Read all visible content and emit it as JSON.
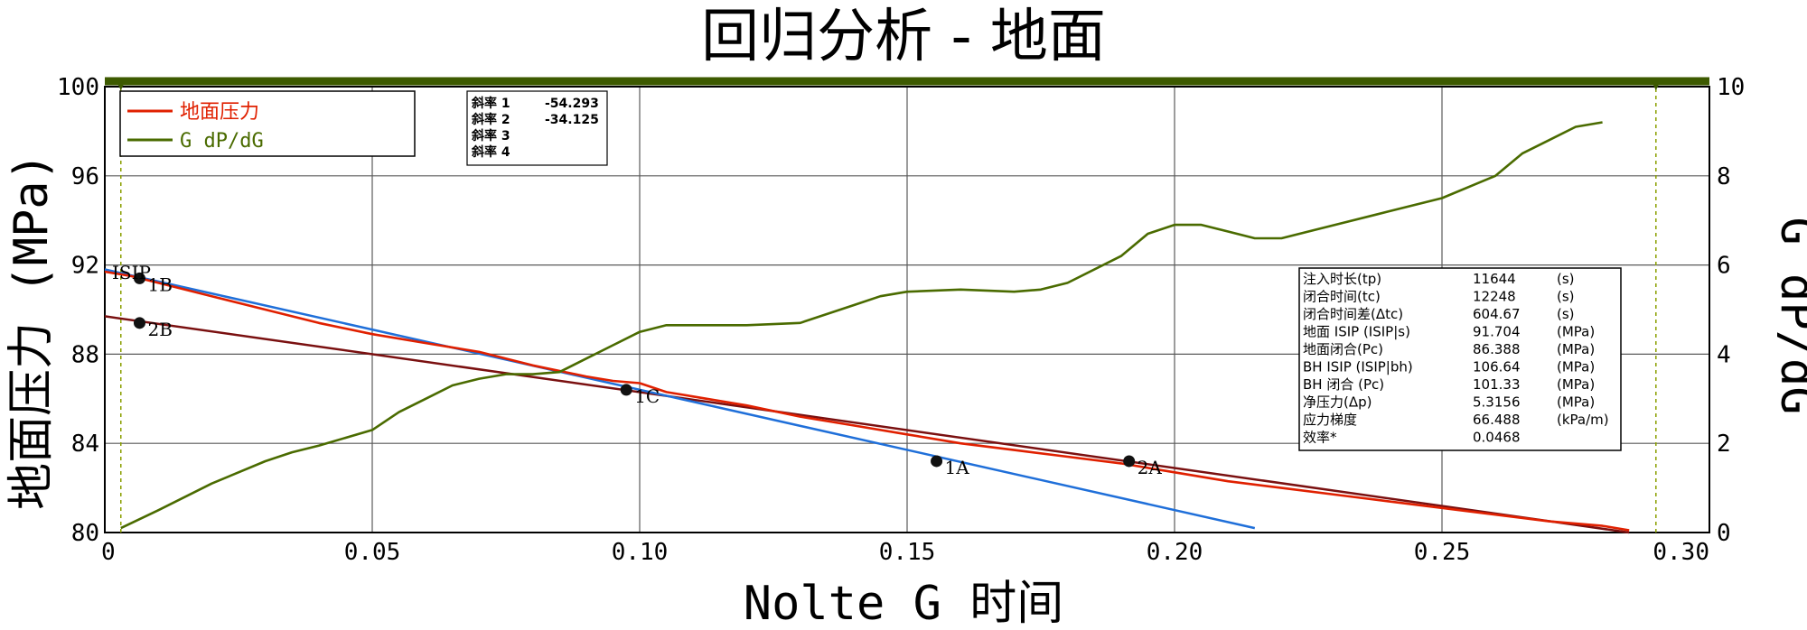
{
  "chart_data": {
    "type": "line",
    "title": "回归分析 - 地面",
    "xlabel": "Nolte G 时间",
    "ylabel": "地面压力 (MPa)",
    "y2label": "G dP/dG",
    "xlim": [
      0,
      0.3
    ],
    "ylim": [
      80,
      100
    ],
    "y2lim": [
      0,
      10
    ],
    "x_ticks": [
      "0",
      "0.05",
      "0.10",
      "0.15",
      "0.20",
      "0.25",
      "0.30"
    ],
    "y_ticks": [
      "80",
      "84",
      "88",
      "92",
      "96",
      "100"
    ],
    "y2_ticks": [
      "0",
      "2",
      "4",
      "6",
      "8",
      "10"
    ],
    "grid": true,
    "legend": {
      "position": "top-left",
      "entries": [
        {
          "label": "地面压力",
          "color": "#e02000"
        },
        {
          "label": "G dP/dG",
          "color": "#4a6b00"
        }
      ]
    },
    "series": [
      {
        "name": "地面压力",
        "axis": "left",
        "color": "#e02000",
        "x": [
          0,
          0.005,
          0.01,
          0.02,
          0.03,
          0.04,
          0.05,
          0.06,
          0.07,
          0.08,
          0.09,
          0.095,
          0.1,
          0.105,
          0.11,
          0.12,
          0.13,
          0.14,
          0.15,
          0.16,
          0.17,
          0.18,
          0.19,
          0.2,
          0.21,
          0.22,
          0.23,
          0.24,
          0.25,
          0.26,
          0.27,
          0.28,
          0.285
        ],
        "y": [
          91.7,
          91.5,
          91.2,
          90.6,
          90.0,
          89.4,
          88.9,
          88.5,
          88.1,
          87.5,
          87.0,
          86.8,
          86.7,
          86.3,
          86.1,
          85.7,
          85.2,
          84.8,
          84.4,
          84.0,
          83.7,
          83.4,
          83.1,
          82.7,
          82.3,
          82.0,
          81.7,
          81.4,
          81.1,
          80.8,
          80.5,
          80.3,
          80.1
        ]
      },
      {
        "name": "G dP/dG",
        "axis": "right",
        "color": "#4a6b00",
        "x": [
          0.003,
          0.01,
          0.02,
          0.03,
          0.035,
          0.04,
          0.05,
          0.055,
          0.06,
          0.065,
          0.07,
          0.075,
          0.08,
          0.085,
          0.09,
          0.095,
          0.1,
          0.105,
          0.11,
          0.12,
          0.13,
          0.14,
          0.145,
          0.15,
          0.16,
          0.17,
          0.175,
          0.18,
          0.19,
          0.195,
          0.2,
          0.205,
          0.21,
          0.215,
          0.22,
          0.23,
          0.24,
          0.25,
          0.26,
          0.265,
          0.27,
          0.275,
          0.28
        ],
        "y": [
          0.1,
          0.5,
          1.1,
          1.6,
          1.8,
          1.95,
          2.3,
          2.7,
          3.0,
          3.3,
          3.45,
          3.55,
          3.55,
          3.6,
          3.9,
          4.2,
          4.5,
          4.65,
          4.65,
          4.65,
          4.7,
          5.1,
          5.3,
          5.4,
          5.45,
          5.4,
          5.45,
          5.6,
          6.2,
          6.7,
          6.9,
          6.9,
          6.75,
          6.6,
          6.6,
          6.9,
          7.2,
          7.5,
          8.0,
          8.5,
          8.8,
          9.1,
          9.2
        ]
      },
      {
        "name": "斜率 1",
        "axis": "left",
        "type": "fit-line",
        "color": "#1f6fd9",
        "x": [
          0,
          0.215
        ],
        "y": [
          91.8,
          80.2
        ]
      },
      {
        "name": "斜率 2",
        "axis": "left",
        "type": "fit-line",
        "color": "#7a1010",
        "x": [
          0,
          0.285
        ],
        "y": [
          89.7,
          80.0
        ]
      }
    ],
    "points": [
      {
        "label": "1A",
        "x": 0.1555,
        "y": 83.2
      },
      {
        "label": "2A",
        "x": 0.1915,
        "y": 83.2
      },
      {
        "label": "1C",
        "x": 0.0975,
        "y": 86.4
      },
      {
        "label": "1B",
        "x": 0.0065,
        "y": 91.4
      },
      {
        "label": "2B",
        "x": 0.0065,
        "y": 89.4
      }
    ],
    "isip_label": "ISIP",
    "vertical_markers": [
      0.003,
      0.29
    ],
    "slopes_box": [
      {
        "label": "斜率 1",
        "value": "-54.293"
      },
      {
        "label": "斜率 2",
        "value": "-34.125"
      },
      {
        "label": "斜率 3",
        "value": ""
      },
      {
        "label": "斜率 4",
        "value": ""
      }
    ],
    "info_table": [
      {
        "label": "注入时长(tp)",
        "value": "11644",
        "unit": "(s)"
      },
      {
        "label": "闭合时间(tc)",
        "value": "12248",
        "unit": "(s)"
      },
      {
        "label": "闭合时间差(Δtc)",
        "value": "604.67",
        "unit": "(s)"
      },
      {
        "label": "地面 ISIP (ISIP|s)",
        "value": "91.704",
        "unit": "(MPa)"
      },
      {
        "label": "地面闭合(Pc)",
        "value": "86.388",
        "unit": "(MPa)"
      },
      {
        "label": "BH ISIP (ISIP|bh)",
        "value": "106.64",
        "unit": "(MPa)"
      },
      {
        "label": "BH 闭合 (Pc)",
        "value": "101.33",
        "unit": "(MPa)"
      },
      {
        "label": "净压力(Δp)",
        "value": "5.3156",
        "unit": "(MPa)"
      },
      {
        "label": "应力梯度",
        "value": "66.488",
        "unit": "(kPa/m)"
      },
      {
        "label": "效率*",
        "value": "0.0468",
        "unit": ""
      }
    ]
  }
}
